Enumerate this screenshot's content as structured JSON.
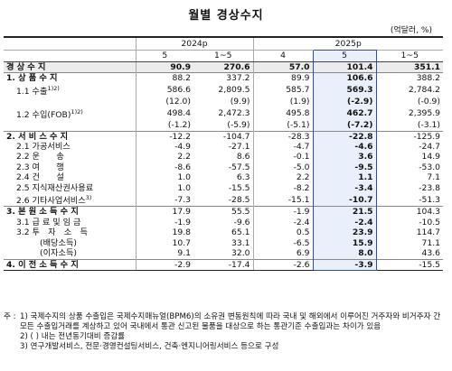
{
  "title": "월별 경상수지",
  "unit": "(억달러, %)",
  "header": {
    "period_2024": "2024p",
    "period_2025": "2025p",
    "cols": [
      "5",
      "1~5",
      "4",
      "5",
      "1~5"
    ]
  },
  "rows": [
    {
      "label": "경 상 수 지",
      "v": [
        "90.9",
        "270.6",
        "57.0",
        "101.4",
        "351.1"
      ]
    },
    {
      "label": "1. 상 품 수 지",
      "v": [
        "88.2",
        "337.2",
        "89.9",
        "106.6",
        "388.2"
      ]
    },
    {
      "label": "1.1 수출",
      "sup": "1)2)",
      "v": [
        "586.6",
        "2,809.5",
        "585.7",
        "569.3",
        "2,784.2"
      ]
    },
    {
      "label": "",
      "v": [
        "(12.0)",
        "(9.9)",
        "(1.9)",
        "(-2.9)",
        "(-0.9)"
      ]
    },
    {
      "label": "1.2 수입(FOB)",
      "sup": "1)2)",
      "v": [
        "498.4",
        "2,472.3",
        "495.8",
        "462.7",
        "2,395.9"
      ]
    },
    {
      "label": "",
      "v": [
        "(-1.2)",
        "(-5.9)",
        "(-5.1)",
        "(-7.2)",
        "(-3.1)"
      ]
    },
    {
      "label": "2. 서 비 스 수 지",
      "v": [
        "-12.2",
        "-104.7",
        "-28.3",
        "-22.8",
        "-125.9"
      ]
    },
    {
      "label": "2.1 가공서비스",
      "v": [
        "-4.9",
        "-27.1",
        "-4.7",
        "-4.6",
        "-24.7"
      ]
    },
    {
      "label": "2.2 운　　송",
      "v": [
        "2.2",
        "8.6",
        "-0.1",
        "3.6",
        "14.9"
      ]
    },
    {
      "label": "2.3 여　　행",
      "v": [
        "-8.6",
        "-57.5",
        "-5.0",
        "-9.5",
        "-53.0"
      ]
    },
    {
      "label": "2.4 건　　설",
      "v": [
        "1.0",
        "6.3",
        "2.2",
        "1.1",
        "7.1"
      ]
    },
    {
      "label": "2.5 지식재산권사용료",
      "v": [
        "1.0",
        "-15.5",
        "-8.2",
        "-3.4",
        "-23.8"
      ]
    },
    {
      "label": "2.6 기타사업서비스",
      "sup": "3)",
      "v": [
        "-7.3",
        "-28.5",
        "-15.1",
        "-10.7",
        "-51.3"
      ]
    },
    {
      "label": "3. 본 원 소 득 수 지",
      "v": [
        "17.9",
        "55.5",
        "-1.9",
        "21.5",
        "104.3"
      ]
    },
    {
      "label": "3.1 급 료 및 임 금",
      "v": [
        "-1.9",
        "-9.6",
        "-2.4",
        "-2.4",
        "-10.5"
      ]
    },
    {
      "label": "3.2 투　자　소　득",
      "v": [
        "19.8",
        "65.1",
        "0.5",
        "23.9",
        "114.7"
      ]
    },
    {
      "label": "(배당소득)",
      "v": [
        "10.7",
        "33.1",
        "-6.5",
        "15.9",
        "71.1"
      ]
    },
    {
      "label": "(이자소득)",
      "v": [
        "9.1",
        "32.0",
        "6.9",
        "8.0",
        "43.6"
      ]
    },
    {
      "label": "4. 이 전 소 득 수 지",
      "v": [
        "-2.9",
        "-17.4",
        "-2.6",
        "-3.9",
        "-15.5"
      ]
    }
  ],
  "notes": {
    "prefix": "주 :",
    "n1": "1) 국제수지의 상품 수출입은 국제수지매뉴얼(BPM6)의 소유권 변동원칙에 따라 국내 및 해외에서 이루어진 거주자와 비거주자 간 모든 수출입거래를 계상하고 있어 국내에서 통관 신고된 물품을 대상으로 하는 통관기준 수출입과는 차이가 있음",
    "n2": "2) ( ) 내는 전년동기대비 증감률",
    "n3": "3) 연구개발서비스, 전문·경영컨설팅서비스, 건축·엔지니어링서비스 등으로 구성"
  }
}
